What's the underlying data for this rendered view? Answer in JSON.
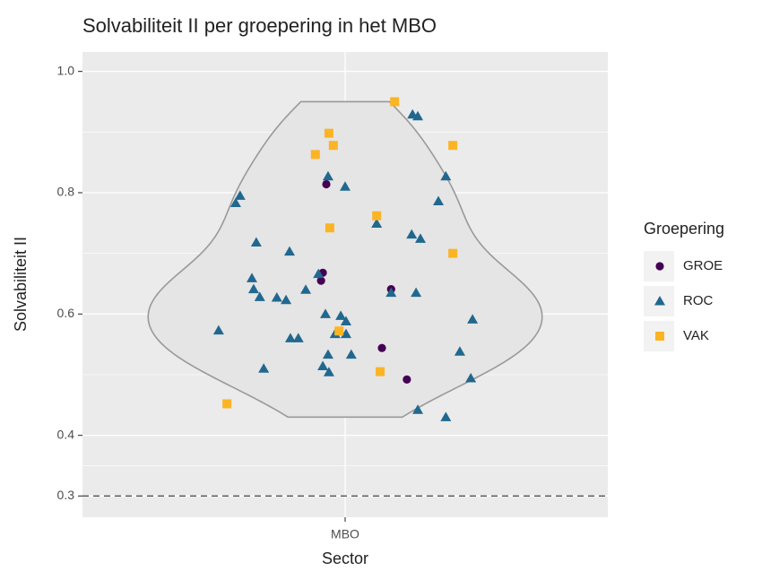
{
  "chart_data": {
    "type": "scatter",
    "title": "Solvabiliteit II per groepering in het MBO",
    "x_label": "Sector",
    "y_label": "Solvabiliteit II",
    "legend_title": "Groepering",
    "legend": "right",
    "categories": [
      "MBO"
    ],
    "xlim": [
      0.4,
      1.6
    ],
    "ylim": [
      0.265,
      1.032
    ],
    "yticks": [
      0.3,
      0.4,
      0.6,
      0.8,
      {
        "value": 1,
        "label": "1.0"
      }
    ],
    "minor_yticks": [
      0.35,
      0.5,
      0.7,
      0.9
    ],
    "hline": 0.3,
    "grid": true,
    "series": [
      {
        "name": "GROE",
        "color": "#440154",
        "marker": "circle",
        "x": [
          0.957,
          0.949,
          0.945,
          1.105,
          1.084,
          1.141
        ],
        "values": [
          0.814,
          0.668,
          0.655,
          0.641,
          0.544,
          0.492
        ]
      },
      {
        "name": "ROC",
        "color": "#21688f",
        "marker": "triangle",
        "x": [
          1.154,
          1.166,
          0.961,
          1.0,
          1.23,
          0.76,
          0.75,
          1.213,
          1.072,
          0.797,
          1.152,
          1.172,
          0.873,
          0.787,
          0.791,
          0.805,
          0.844,
          0.865,
          0.91,
          0.939,
          1.105,
          1.162,
          0.955,
          0.99,
          1.002,
          1.291,
          0.711,
          0.977,
          1.002,
          0.875,
          0.893,
          0.961,
          1.014,
          1.262,
          0.949,
          0.963,
          0.814,
          1.287,
          1.166,
          1.23
        ],
        "values": [
          0.929,
          0.926,
          0.827,
          0.81,
          0.827,
          0.795,
          0.783,
          0.786,
          0.749,
          0.718,
          0.731,
          0.724,
          0.703,
          0.659,
          0.641,
          0.628,
          0.627,
          0.623,
          0.64,
          0.666,
          0.635,
          0.635,
          0.6,
          0.597,
          0.588,
          0.591,
          0.573,
          0.567,
          0.567,
          0.56,
          0.56,
          0.533,
          0.533,
          0.538,
          0.514,
          0.504,
          0.51,
          0.494,
          0.442,
          0.43
        ]
      },
      {
        "name": "VAK",
        "color": "#fbb424",
        "marker": "square",
        "x": [
          1.113,
          0.963,
          0.973,
          0.932,
          1.246,
          1.072,
          0.965,
          1.246,
          0.986,
          1.08,
          0.73
        ],
        "values": [
          0.95,
          0.898,
          0.878,
          0.863,
          0.878,
          0.762,
          0.742,
          0.7,
          0.572,
          0.505,
          0.452
        ]
      }
    ]
  }
}
